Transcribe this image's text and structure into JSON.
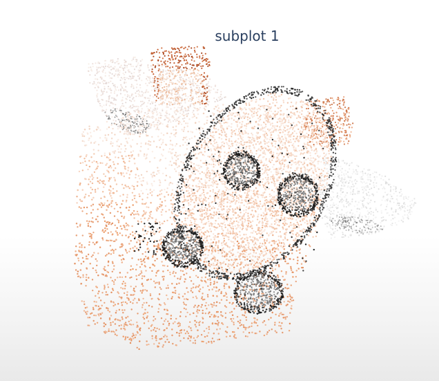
{
  "chart_data": {
    "type": "scatter",
    "subtype": "3d-point-cloud",
    "title": "subplot 1",
    "description_colors": {
      "light": "#f6e3d8",
      "mid": "#f0b48f",
      "dark_orange": "#c8693a",
      "shadow": "#333333",
      "black": "#111111"
    },
    "grid": false,
    "legend": "none"
  }
}
